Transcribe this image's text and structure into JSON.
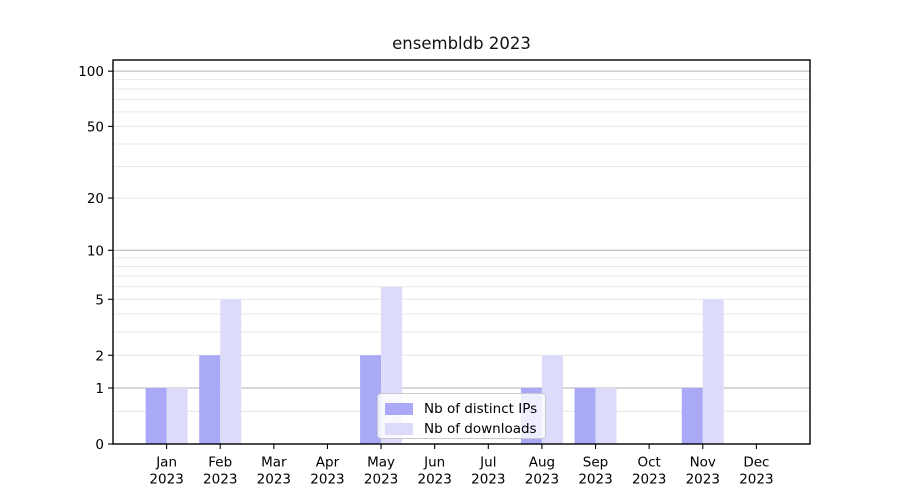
{
  "chart_data": {
    "type": "bar",
    "title": "ensembldb 2023",
    "x_categories": [
      "Jan",
      "Feb",
      "Mar",
      "Apr",
      "May",
      "Jun",
      "Jul",
      "Aug",
      "Sep",
      "Oct",
      "Nov",
      "Dec"
    ],
    "x_sublabel": "2023",
    "series": [
      {
        "name": "Nb of distinct IPs",
        "color": "#a9a9f7",
        "values": [
          1,
          2,
          0,
          0,
          2,
          0,
          0,
          1,
          1,
          0,
          1,
          0
        ]
      },
      {
        "name": "Nb of downloads",
        "color": "#dcdcfa",
        "values": [
          1,
          5,
          0,
          0,
          6,
          0,
          0,
          2,
          1,
          0,
          5,
          0
        ]
      }
    ],
    "y_axis": {
      "scale": "log10(value+1)",
      "min": 0,
      "max": 115,
      "tick_values": [
        0,
        1,
        2,
        5,
        10,
        20,
        50,
        100
      ],
      "major_gridlines": [
        1,
        10,
        100
      ],
      "minor_gridlines": [
        0.5,
        2,
        3,
        4,
        5,
        6,
        7,
        8,
        9,
        20,
        30,
        40,
        50,
        60,
        70,
        80,
        90
      ]
    },
    "grid": true,
    "legend_position": "lower center",
    "colors": {
      "background": "#ffffff",
      "major_grid": "#b2b2b2",
      "minor_grid": "#e7e7e7",
      "axis": "#000000",
      "text": "#000000",
      "legend_border": "#c9c9c9"
    }
  }
}
